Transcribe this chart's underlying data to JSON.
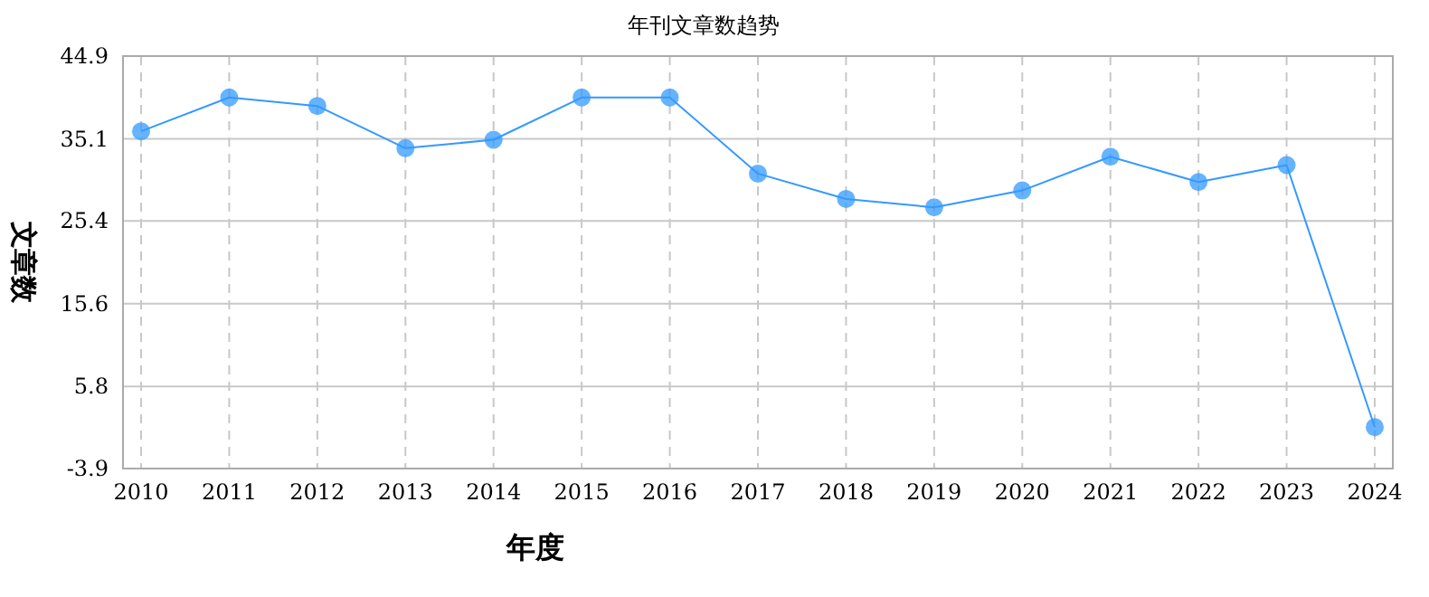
{
  "chart_data": {
    "type": "line",
    "title": "年刊文章数趋势",
    "xlabel": "年度",
    "ylabel": "文章数",
    "categories": [
      "2010",
      "2011",
      "2012",
      "2013",
      "2014",
      "2015",
      "2016",
      "2017",
      "2018",
      "2019",
      "2020",
      "2021",
      "2022",
      "2023",
      "2024"
    ],
    "series": [
      {
        "color": "#3399ff",
        "values": [
          36,
          40,
          39,
          34,
          35,
          40,
          40,
          31,
          28,
          27,
          29,
          33,
          30,
          32,
          1
        ]
      }
    ],
    "ylim": [
      -3.9,
      44.9
    ],
    "yticks": [
      -3.9,
      5.8,
      15.6,
      25.4,
      35.1,
      44.9
    ],
    "grid": true,
    "marker": "circle",
    "line_style": "solid"
  }
}
